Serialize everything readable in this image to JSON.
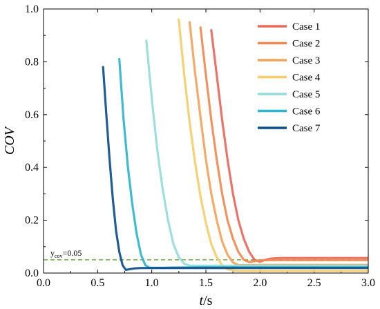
{
  "chart_data": {
    "type": "line",
    "xlabel_italic": "t",
    "xlabel_unit": "/s",
    "ylabel": "COV",
    "xlim": [
      0.0,
      3.0
    ],
    "ylim": [
      0.0,
      1.0
    ],
    "x_ticks": [
      "0.0",
      "0.5",
      "1.0",
      "1.5",
      "2.0",
      "2.5",
      "3.0"
    ],
    "y_ticks": [
      "0.0",
      "0.2",
      "0.4",
      "0.6",
      "0.8",
      "1.0"
    ],
    "legend_position": "top-right",
    "threshold": {
      "y": 0.05,
      "label_main": "y",
      "label_sub": "cov",
      "label_rest": "=0.05",
      "color": "#4f9a1a"
    },
    "series": [
      {
        "name": "Case 1",
        "color": "#e8685a",
        "x": [
          1.55,
          1.6,
          1.65,
          1.7,
          1.75,
          1.8,
          1.85,
          1.9,
          1.95,
          2.0,
          2.05,
          2.1,
          2.2,
          2.4,
          2.6,
          2.8,
          3.0
        ],
        "y": [
          0.92,
          0.75,
          0.58,
          0.43,
          0.3,
          0.2,
          0.13,
          0.08,
          0.05,
          0.043,
          0.05,
          0.055,
          0.057,
          0.057,
          0.057,
          0.057,
          0.057
        ]
      },
      {
        "name": "Case 2",
        "color": "#f08a50",
        "x": [
          1.45,
          1.5,
          1.55,
          1.6,
          1.65,
          1.7,
          1.75,
          1.8,
          1.85,
          1.9,
          1.95,
          2.0,
          2.1,
          2.3,
          2.6,
          3.0
        ],
        "y": [
          0.93,
          0.75,
          0.58,
          0.43,
          0.3,
          0.2,
          0.13,
          0.08,
          0.05,
          0.042,
          0.045,
          0.048,
          0.049,
          0.049,
          0.049,
          0.049
        ]
      },
      {
        "name": "Case 3",
        "color": "#f4a35a",
        "x": [
          1.35,
          1.4,
          1.45,
          1.5,
          1.55,
          1.6,
          1.65,
          1.7,
          1.75,
          1.8,
          1.85,
          1.9,
          2.0,
          2.3,
          2.6,
          3.0
        ],
        "y": [
          0.95,
          0.76,
          0.59,
          0.43,
          0.3,
          0.2,
          0.12,
          0.07,
          0.04,
          0.03,
          0.03,
          0.03,
          0.031,
          0.031,
          0.031,
          0.031
        ]
      },
      {
        "name": "Case 4",
        "color": "#f5cd6a",
        "x": [
          1.25,
          1.3,
          1.35,
          1.4,
          1.45,
          1.5,
          1.55,
          1.6,
          1.65,
          1.7,
          1.75,
          1.8,
          1.9,
          2.2,
          2.6,
          3.0
        ],
        "y": [
          0.96,
          0.75,
          0.57,
          0.42,
          0.29,
          0.19,
          0.11,
          0.06,
          0.03,
          0.015,
          0.01,
          0.008,
          0.008,
          0.008,
          0.008,
          0.008
        ]
      },
      {
        "name": "Case 5",
        "color": "#96dcd8",
        "x": [
          0.95,
          1.0,
          1.05,
          1.1,
          1.15,
          1.2,
          1.25,
          1.3,
          1.35,
          1.4,
          1.45,
          1.5,
          1.7,
          2.0,
          2.5,
          3.0
        ],
        "y": [
          0.88,
          0.66,
          0.47,
          0.32,
          0.2,
          0.11,
          0.06,
          0.035,
          0.028,
          0.028,
          0.028,
          0.028,
          0.028,
          0.028,
          0.028,
          0.028
        ]
      },
      {
        "name": "Case 6",
        "color": "#30b4cc",
        "x": [
          0.7,
          0.74,
          0.78,
          0.82,
          0.86,
          0.9,
          0.94,
          0.98,
          1.02,
          1.06,
          1.1,
          1.2,
          1.5,
          2.0,
          2.5,
          3.0
        ],
        "y": [
          0.81,
          0.58,
          0.4,
          0.26,
          0.15,
          0.07,
          0.03,
          0.02,
          0.02,
          0.02,
          0.02,
          0.021,
          0.022,
          0.022,
          0.022,
          0.022
        ]
      },
      {
        "name": "Case 7",
        "color": "#0d4f8a",
        "x": [
          0.55,
          0.58,
          0.61,
          0.64,
          0.67,
          0.7,
          0.73,
          0.76,
          0.8,
          0.85,
          0.9,
          1.0,
          1.2,
          1.6,
          2.0,
          2.5,
          3.0
        ],
        "y": [
          0.78,
          0.6,
          0.43,
          0.28,
          0.16,
          0.08,
          0.03,
          0.012,
          0.015,
          0.018,
          0.019,
          0.019,
          0.019,
          0.019,
          0.019,
          0.019,
          0.019
        ]
      }
    ]
  }
}
